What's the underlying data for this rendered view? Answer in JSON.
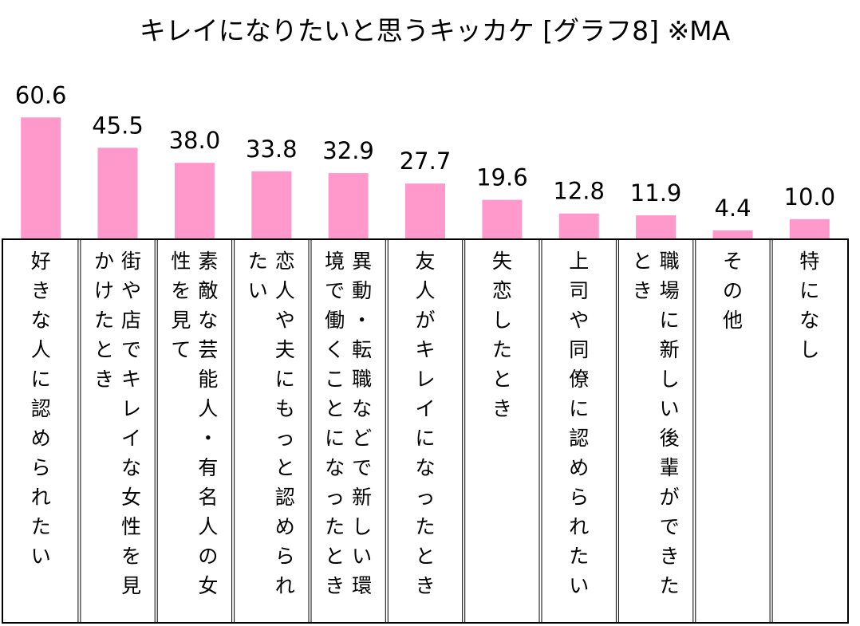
{
  "chart_data": {
    "type": "bar",
    "title": "キレイになりたいと思うキッカケ [グラフ8] ※MA",
    "xlabel": "",
    "ylabel": "",
    "ylim": [
      0,
      70
    ],
    "grid": false,
    "legend": "none",
    "bar_color": "#ff99cc",
    "categories": [
      "好きな人に認められたい",
      "街や店でキレイな女性を見かけたとき",
      "素敵な芸能人・有名人の女性を見て",
      "恋人や夫にもっと認められたい",
      "異動・転職などで新しい環境で働くことになったとき",
      "友人がキレイになったとき",
      "失恋したとき",
      "上司や同僚に認められたい",
      "職場に新しい後輩ができたとき",
      "その他",
      "特になし"
    ],
    "values": [
      60.6,
      45.5,
      38.0,
      33.8,
      32.9,
      27.7,
      19.6,
      12.8,
      11.9,
      4.4,
      10.0
    ],
    "value_labels": [
      "60.6",
      "45.5",
      "38.0",
      "33.8",
      "32.9",
      "27.7",
      "19.6",
      "12.8",
      "11.9",
      "4.4",
      "10.0"
    ]
  }
}
